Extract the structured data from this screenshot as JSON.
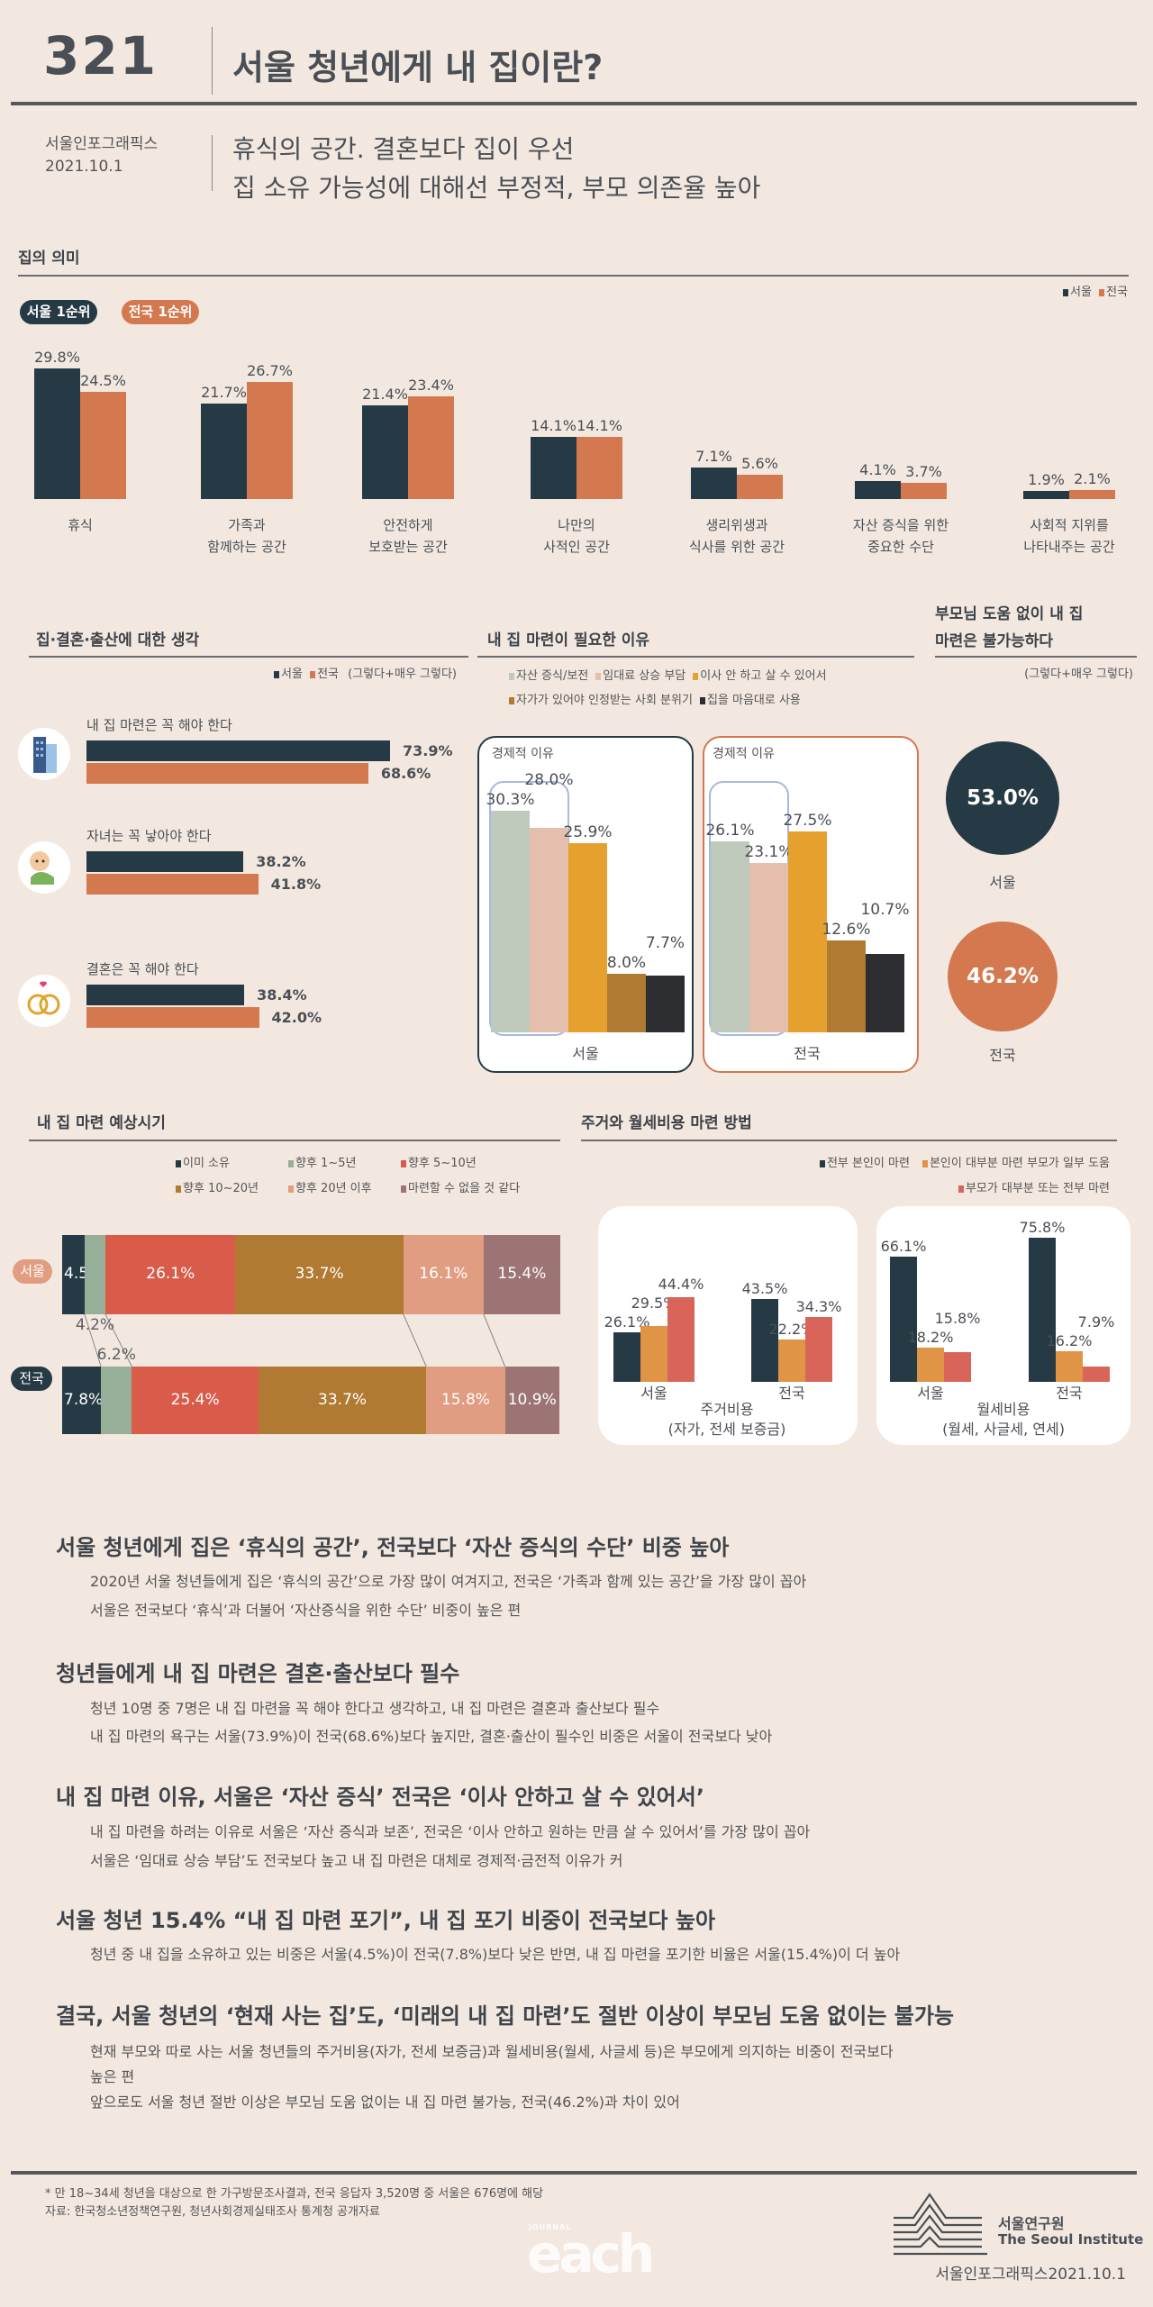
{
  "header": {
    "number": "321",
    "title": "서울 청년에게 내 집이란?",
    "publisher": "서울인포그래픽스",
    "date": "2021.10.1",
    "subtitle_1": "휴식의 공간. 결혼보다 집이 우선",
    "subtitle_2": "집 소유 가능성에 대해선 부정적, 부모 의존율 높아"
  },
  "colors": {
    "seoul": "#263a45",
    "national": "#d4784f",
    "background": "#f2e8e0"
  },
  "meaning": {
    "title": "집의 의미",
    "legend": [
      "서울",
      "전국"
    ],
    "badge_seoul": "서울 1순위",
    "badge_national": "전국 1순위"
  },
  "thoughts": {
    "title": "집·결혼·출산에 대한 생각",
    "legend": [
      "서울",
      "전국"
    ],
    "note": "(그렇다+매우 그렇다)",
    "icons": [
      "building-icon",
      "baby-icon",
      "rings-icon"
    ]
  },
  "reasons": {
    "title": "내 집 마련이 필요한 이유",
    "group_label": "경제적 이유",
    "panels": [
      "서울",
      "전국"
    ]
  },
  "parents": {
    "title_1": "부모님 도움 없이 내 집",
    "title_2": "마련은 불가능하다",
    "note": "(그렇다+매우 그렇다)",
    "labels": [
      "53.0%",
      "46.2%"
    ],
    "names": [
      "서울",
      "전국"
    ]
  },
  "timeline": {
    "title": "내 집 마련 예상시기",
    "rows": [
      "서울",
      "전국"
    ]
  },
  "funding": {
    "title": "주거와 월세비용 마련 방법",
    "panels": [
      {
        "caption_1": "주거비용",
        "caption_2": "(자가, 전세 보증금)",
        "groups": [
          "서울",
          "전국"
        ]
      },
      {
        "caption_1": "월세비용",
        "caption_2": "(월세, 사글세, 연세)",
        "groups": [
          "서울",
          "전국"
        ]
      }
    ]
  },
  "chart_data": [
    {
      "type": "bar",
      "title": "집의 의미",
      "categories": [
        [
          "휴식"
        ],
        [
          "가족과",
          "함께하는 공간"
        ],
        [
          "안전하게",
          "보호받는 공간"
        ],
        [
          "나만의",
          "사적인 공간"
        ],
        [
          "생리위생과",
          "식사를 위한 공간"
        ],
        [
          "자산 증식을 위한",
          "중요한 수단"
        ],
        [
          "사회적 지위를",
          "나타내주는 공간"
        ]
      ],
      "series": [
        {
          "name": "서울",
          "color": "#263a45",
          "values": [
            29.8,
            21.7,
            21.4,
            14.1,
            7.1,
            4.1,
            1.9
          ]
        },
        {
          "name": "전국",
          "color": "#d4784f",
          "values": [
            24.5,
            26.7,
            23.4,
            14.1,
            5.6,
            3.7,
            2.1
          ]
        }
      ],
      "unit": "%"
    },
    {
      "type": "bar",
      "orientation": "horizontal",
      "title": "집·결혼·출산에 대한 생각",
      "categories": [
        "내 집 마련은 꼭 해야 한다",
        "자녀는 꼭 낳아야 한다",
        "결혼은 꼭 해야 한다"
      ],
      "series": [
        {
          "name": "서울",
          "color": "#263a45",
          "values": [
            73.9,
            38.2,
            38.4
          ]
        },
        {
          "name": "전국",
          "color": "#d4784f",
          "values": [
            68.6,
            41.8,
            42.0
          ]
        }
      ],
      "unit": "%"
    },
    {
      "type": "bar",
      "title": "내 집 마련이 필요한 이유",
      "categories": [
        "자산 증식/보전",
        "임대료 상승 부담",
        "이사 안 하고 살 수 있어서",
        "자가가 있어야 인정받는 사회 분위기",
        "집을 마음대로 사용"
      ],
      "colors": [
        "#bfcabd",
        "#e4bfae",
        "#e5a02d",
        "#b07a32",
        "#2c2d30"
      ],
      "series": [
        {
          "name": "서울",
          "values": [
            30.3,
            28.0,
            25.9,
            8.0,
            7.7
          ]
        },
        {
          "name": "전국",
          "values": [
            26.1,
            23.1,
            27.5,
            12.6,
            10.7
          ]
        }
      ],
      "unit": "%"
    },
    {
      "type": "pie",
      "title": "부모님 도움 없이 내 집 마련은 불가능하다",
      "categories": [
        "서울",
        "전국"
      ],
      "values": [
        53.0,
        46.2
      ],
      "unit": "%"
    },
    {
      "type": "bar",
      "stacked": true,
      "orientation": "horizontal",
      "title": "내 집 마련 예상시기",
      "categories": [
        "이미 소유",
        "향후 1~5년",
        "향후 5~10년",
        "향후 10~20년",
        "향후 20년 이후",
        "마련할 수 없을 것 같다"
      ],
      "colors": [
        "#263a45",
        "#97ae98",
        "#d95c4b",
        "#b07a32",
        "#e19d81",
        "#9c7474"
      ],
      "series": [
        {
          "name": "서울",
          "values": [
            4.5,
            4.2,
            26.1,
            33.7,
            16.1,
            15.4
          ]
        },
        {
          "name": "전국",
          "values": [
            7.8,
            6.2,
            25.4,
            33.7,
            15.8,
            10.9
          ]
        }
      ],
      "unit": "%"
    },
    {
      "type": "bar",
      "title": "주거와 월세비용 마련 방법",
      "categories": [
        "전부 본인이 마련",
        "본인이 대부분 마련 부모가 일부 도움",
        "부모가 대부분 또는 전부 마련"
      ],
      "colors": [
        "#263a45",
        "#e09445",
        "#d9645a"
      ],
      "panels": [
        {
          "name": "주거비용",
          "series": [
            {
              "name": "서울",
              "values": [
                26.1,
                29.5,
                44.4
              ]
            },
            {
              "name": "전국",
              "values": [
                43.5,
                22.2,
                34.3
              ]
            }
          ]
        },
        {
          "name": "월세비용",
          "series": [
            {
              "name": "서울",
              "values": [
                66.1,
                18.2,
                15.8
              ]
            },
            {
              "name": "전국",
              "values": [
                75.8,
                16.2,
                7.9
              ]
            }
          ]
        }
      ],
      "unit": "%"
    }
  ],
  "text": [
    {
      "heading": "서울 청년에게 집은 ‘휴식의 공간’, 전국보다 ‘자산 증식의 수단’ 비중 높아",
      "lines": [
        "2020년 서울 청년들에게 집은 ‘휴식의 공간’으로 가장 많이 여겨지고, 전국은 ‘가족과 함께 있는 공간’을 가장 많이 꼽아",
        "서울은 전국보다 ‘휴식’과 더불어 ‘자산증식을 위한 수단’ 비중이 높은 편"
      ]
    },
    {
      "heading": "청년들에게 내 집 마련은 결혼·출산보다 필수",
      "lines": [
        "청년 10명 중 7명은 내 집 마련을 꼭 해야 한다고 생각하고, 내 집 마련은 결혼과 출산보다 필수",
        "내 집 마련의 욕구는 서울(73.9%)이 전국(68.6%)보다 높지만, 결혼·출산이 필수인 비중은 서울이 전국보다 낮아"
      ]
    },
    {
      "heading": "내 집 마련 이유, 서울은 ‘자산 증식’ 전국은 ‘이사 안하고 살 수 있어서’",
      "lines": [
        "내 집 마련을 하려는 이유로 서울은 ‘자산 증식과 보존’, 전국은 ‘이사 안하고 원하는 만큼 살 수 있어서’를 가장 많이 꼽아",
        "서울은 ‘임대료 상승 부담’도 전국보다 높고 내 집 마련은 대체로 경제적·금전적 이유가 커"
      ]
    },
    {
      "heading": "서울 청년 15.4% “내 집 마련 포기”, 내 집 포기 비중이 전국보다 높아",
      "lines": [
        "청년 중 내 집을 소유하고 있는 비중은 서울(4.5%)이 전국(7.8%)보다 낮은 반면, 내 집 마련을 포기한 비율은 서울(15.4%)이 더 높아"
      ]
    },
    {
      "heading": "결국, 서울 청년의 ‘현재 사는 집’도, ‘미래의 내 집 마련’도 절반 이상이 부모님 도움 없이는 불가능",
      "lines": [
        "현재 부모와 따로 사는 서울 청년들의 주거비용(자가, 전세 보증금)과 월세비용(월세, 사글세 등)은 부모에게 의지하는 비중이 전국보다",
        "높은 편",
        "앞으로도 서울 청년 절반 이상은 부모님 도움 없이는 내 집 마련 불가능, 전국(46.2%)과 차이 있어"
      ]
    }
  ],
  "footer": {
    "note": "* 만 18~34세 청년을 대상으로 한 가구방문조사결과, 전국 응답자 3,520명 중 서울은 676명에 해당",
    "source": "자료: 한국청소년정책연구원, 청년사회경제실태조사 통계청 공개자료",
    "org_kr": "서울연구원",
    "org_en": "The Seoul Institute",
    "credit": "서울인포그래픽스2021.10.1",
    "watermark": "each",
    "watermark_top": "JOURNAL"
  }
}
